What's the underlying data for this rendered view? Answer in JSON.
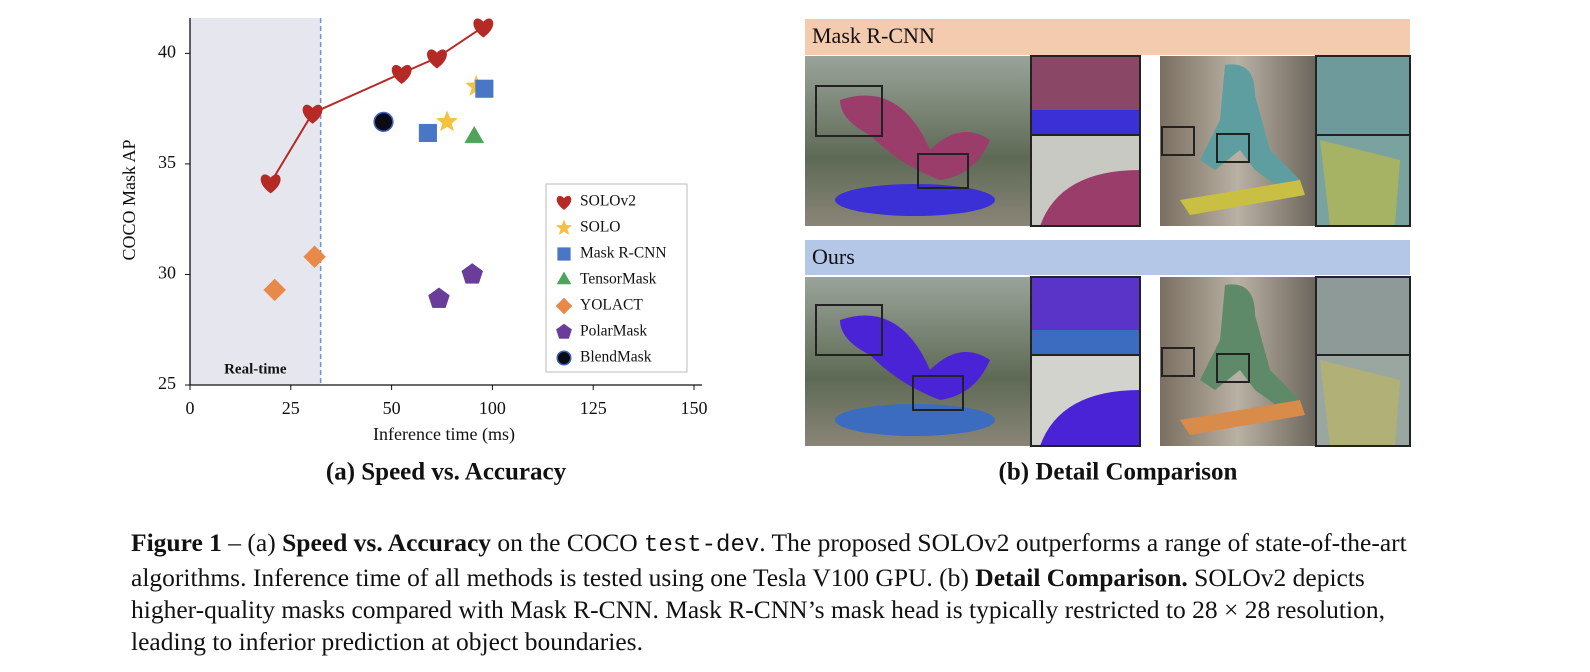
{
  "chart_data": {
    "type": "scatter",
    "title": "(a) Speed vs. Accuracy",
    "xlabel": "Inference time (ms)",
    "ylabel": "COCO Mask AP",
    "xlim": [
      0,
      150
    ],
    "xticks": [
      0,
      25,
      50,
      100,
      125,
      150
    ],
    "ylim": [
      25,
      41.6
    ],
    "yticks": [
      25,
      30,
      35,
      40
    ],
    "grid": false,
    "legend": "lower right",
    "realtime": {
      "x": 32.4,
      "label": "Real-time",
      "color": "#6f95d6",
      "shade": "#e6e7ee"
    },
    "series": [
      {
        "name": "SOLOv2",
        "color": "#b52a25",
        "marker": "heart",
        "line": true,
        "x": [
          20,
          30.4,
          55,
          72.5,
          95.5
        ],
        "values": [
          34.15,
          37.3,
          39.1,
          39.8,
          41.2
        ]
      },
      {
        "name": "SOLO",
        "color": "#f5c142",
        "marker": "star",
        "x": [
          77.5,
          92
        ],
        "values": [
          36.9,
          38.5
        ]
      },
      {
        "name": "Mask R-CNN",
        "color": "#4a76c6",
        "marker": "square",
        "x": [
          68,
          96
        ],
        "values": [
          36.4,
          38.4
        ]
      },
      {
        "name": "TensorMask",
        "color": "#4ea55a",
        "marker": "triangle",
        "x": [
          91
        ],
        "values": [
          36.2
        ]
      },
      {
        "name": "YOLACT",
        "color": "#e8894a",
        "marker": "diamond",
        "x": [
          21,
          30.9
        ],
        "values": [
          29.3,
          30.8
        ]
      },
      {
        "name": "PolarMask",
        "color": "#6a3d9a",
        "marker": "pentagon",
        "x": [
          73.5,
          90
        ],
        "values": [
          28.9,
          30.0
        ]
      },
      {
        "name": "BlendMask",
        "color": "#0b0b14",
        "marker": "circle",
        "x": [
          48
        ],
        "values": [
          36.9
        ]
      }
    ]
  },
  "panel_b": {
    "title": "(b) Detail Comparison",
    "row_top": "Mask R-CNN",
    "row_bottom": "Ours"
  },
  "caption": [
    "Figure 1",
    " – (a) ",
    "Speed vs. Accuracy",
    " on the COCO ",
    "test-dev",
    ". The proposed SOLOv2 outperforms a range of state-of-the-art algorithms. Inference time of all methods is tested using one Tesla V100 GPU. (b) ",
    "Detail Comparison.",
    " SOLOv2 depicts higher-quality masks compared with Mask R-CNN. Mask R-CNN’s mask head is typically restricted to 28 × 28 resolution, leading to inferior prediction at object boundaries."
  ]
}
